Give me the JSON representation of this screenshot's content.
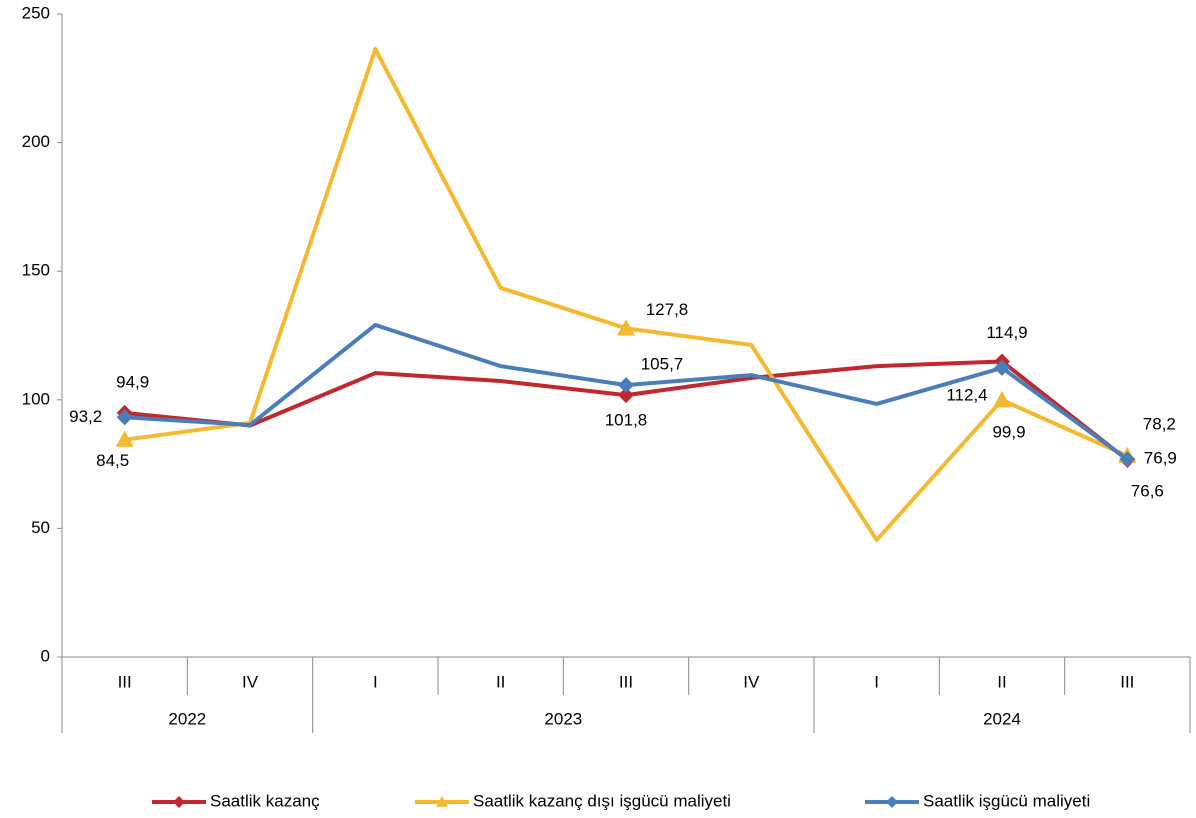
{
  "chart_data": {
    "type": "line",
    "categories": [
      "III",
      "IV",
      "I",
      "II",
      "III",
      "IV",
      "I",
      "II",
      "III"
    ],
    "groups": [
      {
        "label": "2022",
        "span": 2
      },
      {
        "label": "2023",
        "span": 4
      },
      {
        "label": "2024",
        "span": 3
      }
    ],
    "series": [
      {
        "name": "Saatlik kazanç",
        "color": "#C0282D",
        "marker": "diamond",
        "values": [
          94.9,
          90,
          110.4,
          107.3,
          101.8,
          108.5,
          113.1,
          114.9,
          76.6
        ],
        "value_labels": [
          "94,9",
          null,
          null,
          null,
          "101,8",
          null,
          null,
          "114,9",
          "76,6"
        ]
      },
      {
        "name": "Saatlik kazanç dışı işgücü maliyeti",
        "color": "#F4B92E",
        "marker": "triangle",
        "values": [
          84.5,
          91,
          236.4,
          143.5,
          127.8,
          121.3,
          45.5,
          99.9,
          78.2
        ],
        "value_labels": [
          "84,5",
          null,
          null,
          null,
          "127,8",
          null,
          null,
          "99,9",
          "78,2"
        ]
      },
      {
        "name": "Saatlik işgücü maliyeti",
        "color": "#4A7EBB",
        "marker": "diamond",
        "values": [
          93.2,
          90.2,
          129.1,
          113.1,
          105.7,
          109.6,
          98.4,
          112.4,
          76.9
        ],
        "value_labels": [
          "93,2",
          null,
          null,
          null,
          "105,7",
          null,
          null,
          "112,4",
          "76,9"
        ]
      }
    ],
    "ylim": [
      0,
      250
    ],
    "yticks": [
      0,
      50,
      100,
      150,
      200,
      250
    ],
    "grid": false
  }
}
